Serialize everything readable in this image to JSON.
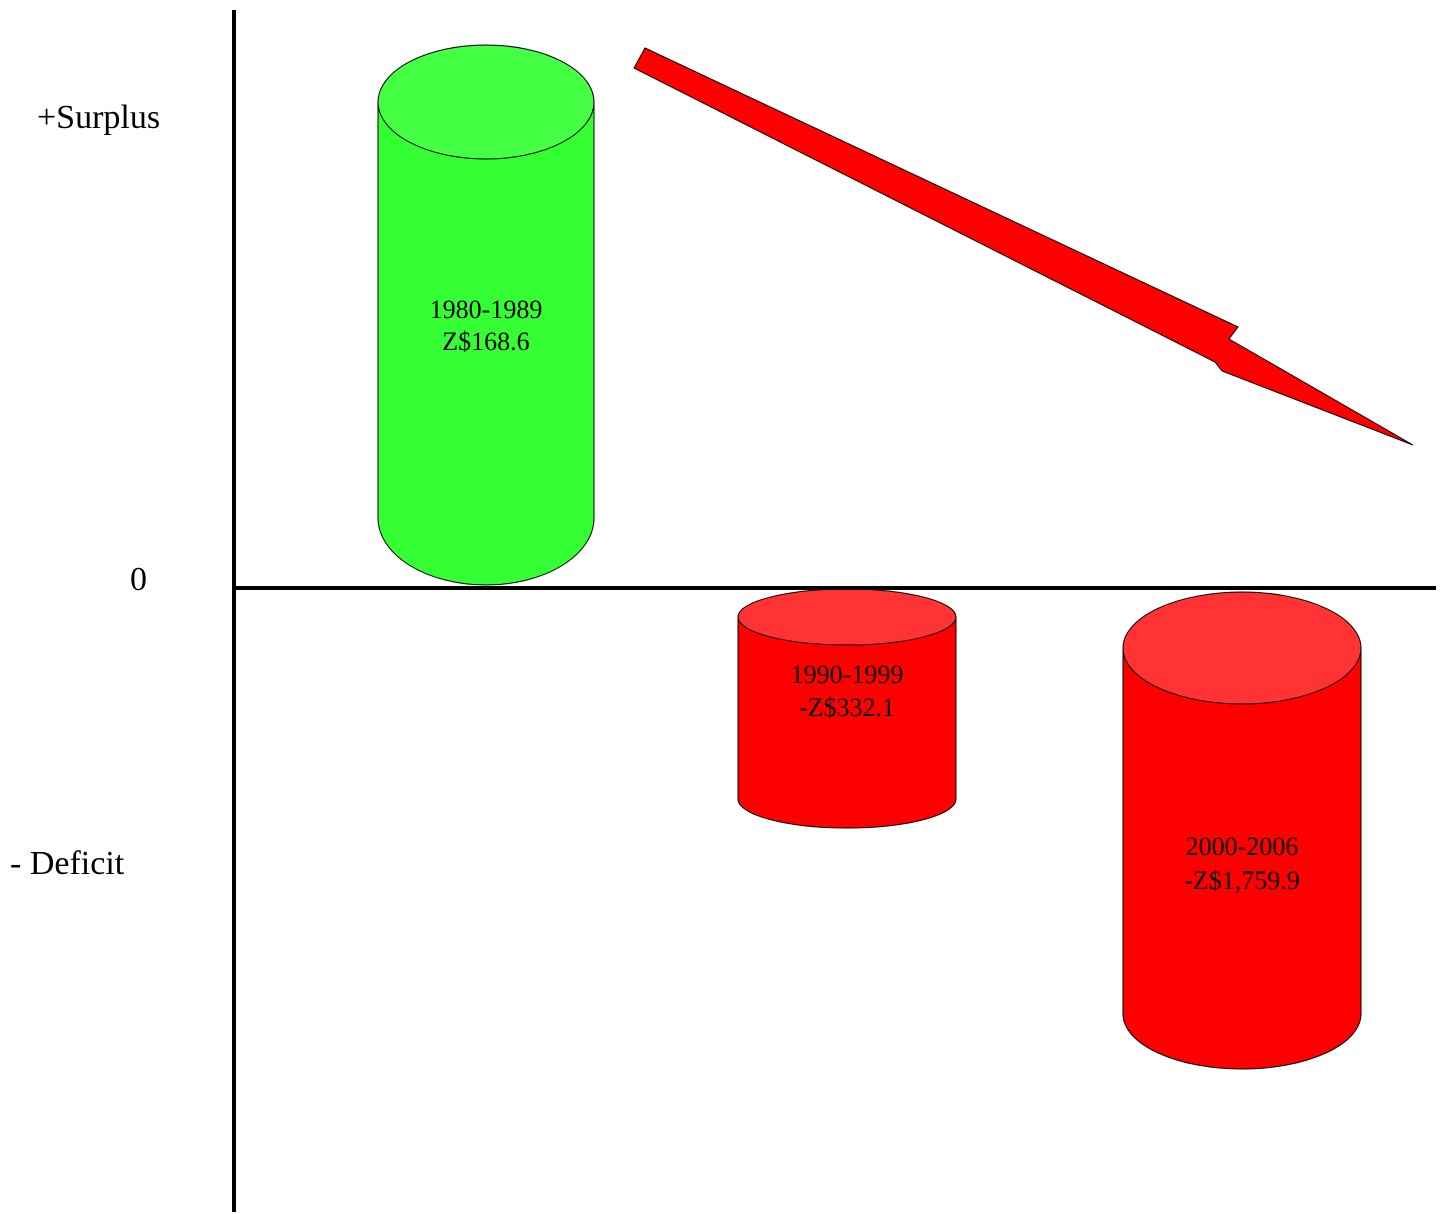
{
  "chart_data": {
    "type": "bar",
    "categories": [
      "1980-1989",
      "1990-1999",
      "2000-2006"
    ],
    "values": [
      168.6,
      -332.1,
      -1759.9
    ],
    "value_labels": [
      "Z$168.6",
      "-Z$332.1",
      "-Z$1,759.9"
    ],
    "y_tick_labels": {
      "top": "+Surplus",
      "zero": "0",
      "bottom": "- Deficit"
    },
    "trend": "decreasing",
    "colors": {
      "surplus_body": "#33ff33",
      "surplus_top": "#44ff44",
      "deficit_body": "#ff0000",
      "deficit_top": "#ff3333",
      "arrow": "#ff0000",
      "axis": "#000000"
    }
  }
}
